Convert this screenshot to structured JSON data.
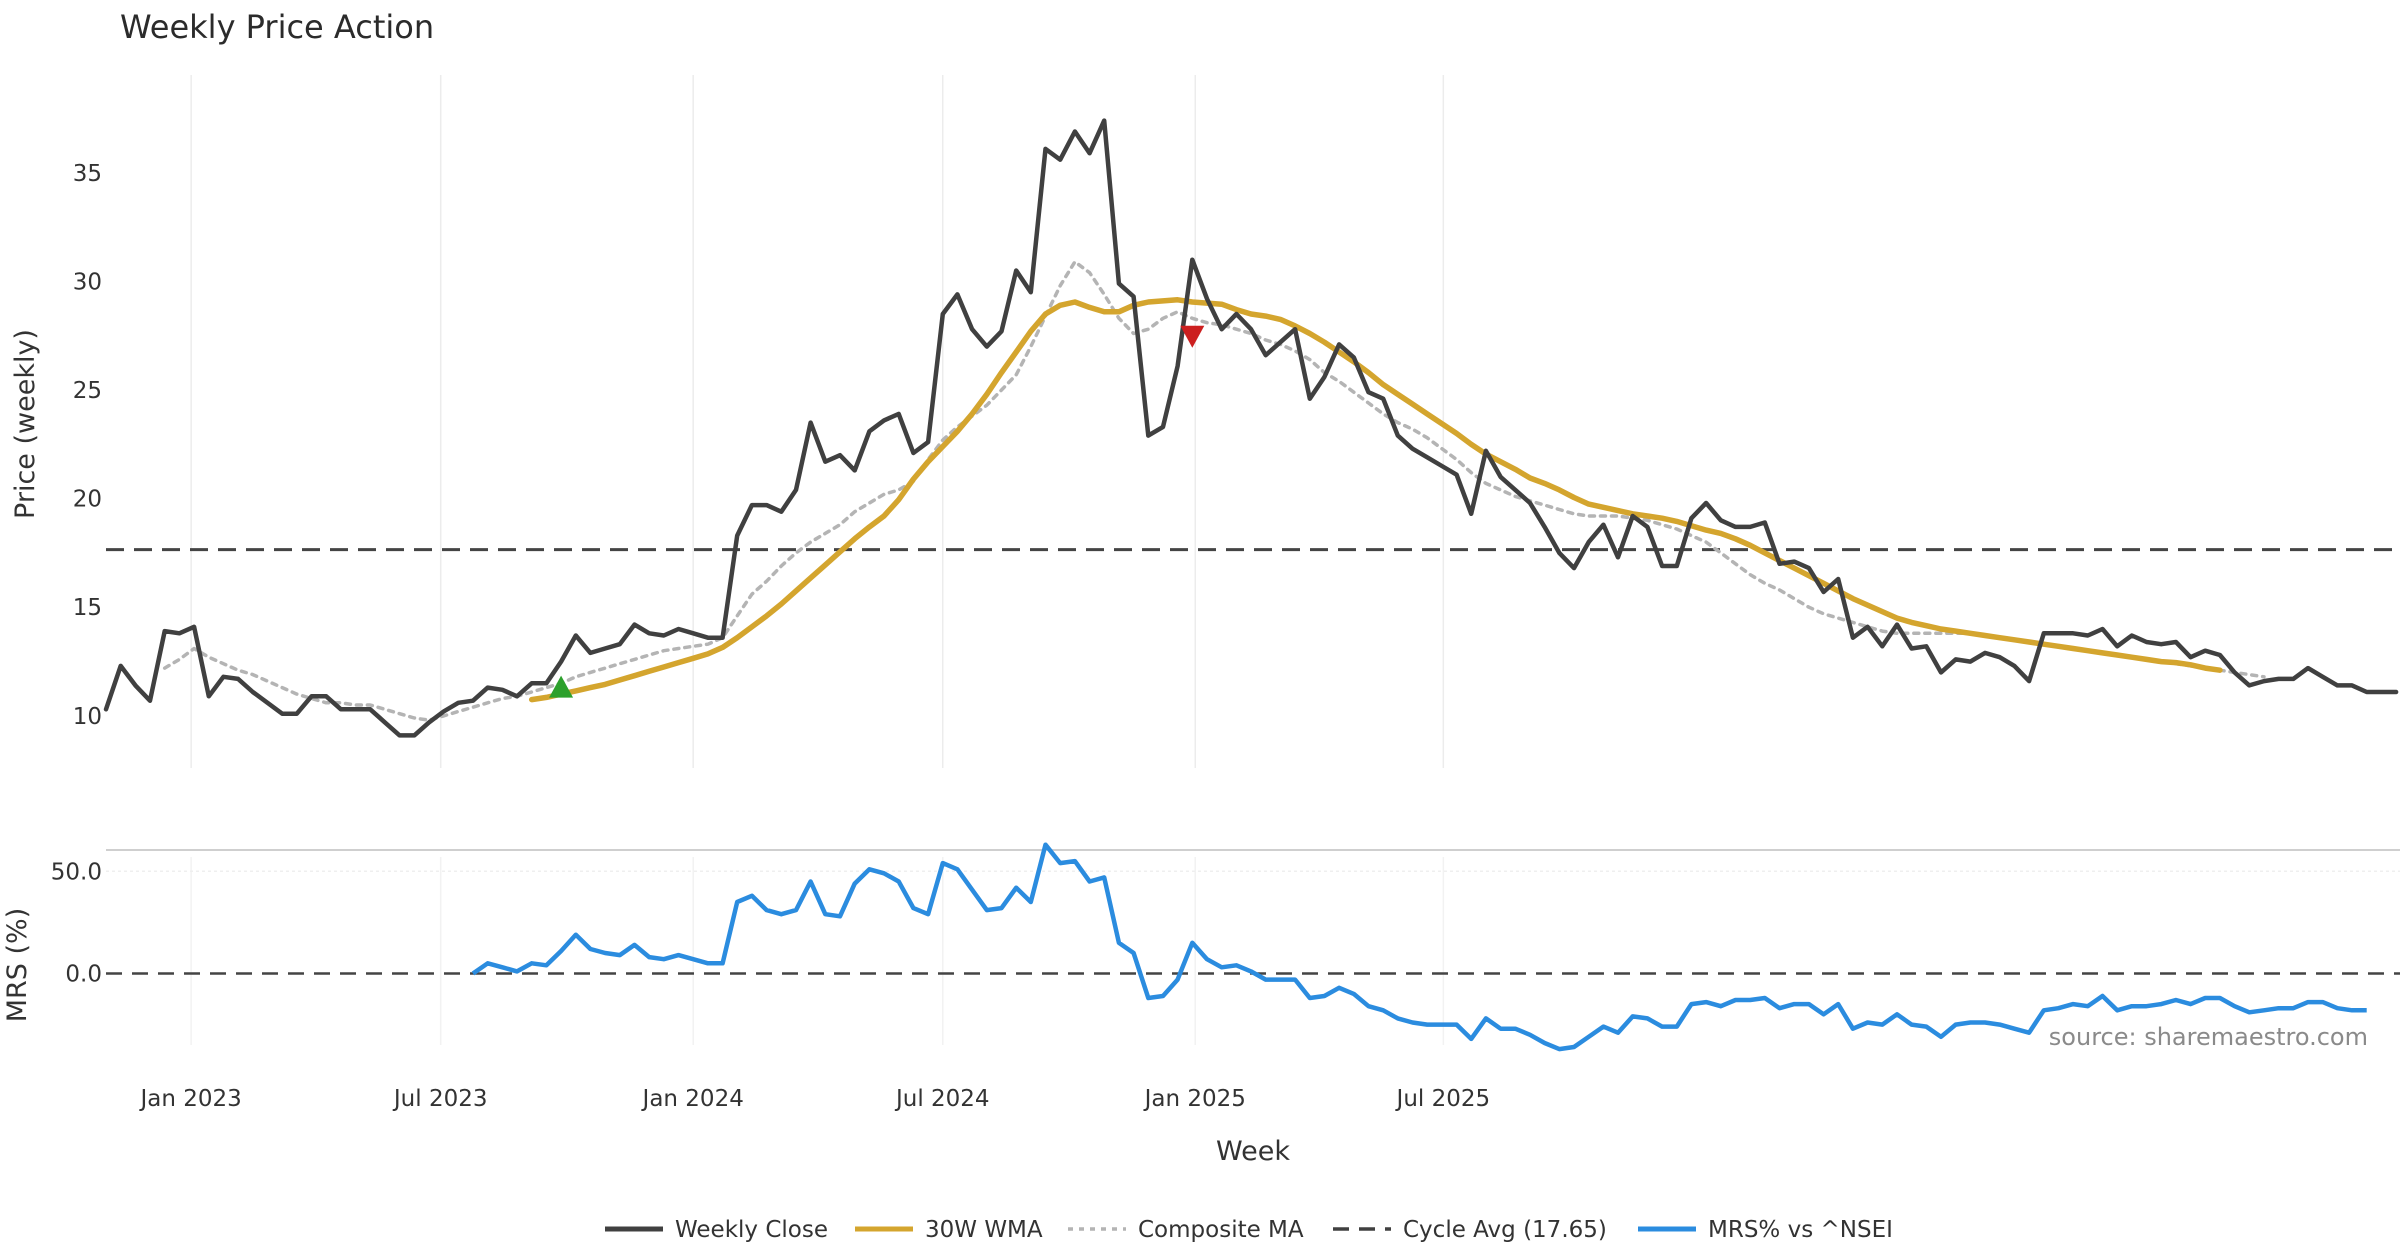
{
  "chart_data": {
    "type": "line",
    "title": "Weekly Price Action",
    "xlabel": "Week",
    "source": "source: sharemaestro.com",
    "x_ticks": [
      "Jan 2023",
      "Jul 2023",
      "Jan 2024",
      "Jul 2024",
      "Jan 2025",
      "Jul 2025"
    ],
    "price_panel": {
      "ylabel": "Price (weekly)",
      "ylim": [
        7.6,
        39.5
      ],
      "yticks": [
        "10",
        "15",
        "20",
        "25",
        "30",
        "35"
      ],
      "ytick_values": [
        10,
        15,
        20,
        25,
        30,
        35
      ],
      "series": [
        {
          "name": "Weekly Close",
          "color": "#404040",
          "style": "solid",
          "start_week": 0,
          "values": [
            10.3,
            12.3,
            11.4,
            10.7,
            13.9,
            13.8,
            14.1,
            10.9,
            11.8,
            11.7,
            11.1,
            10.6,
            10.1,
            10.1,
            10.9,
            10.9,
            10.3,
            10.3,
            10.3,
            9.7,
            9.1,
            9.1,
            9.7,
            10.2,
            10.6,
            10.7,
            11.3,
            11.2,
            10.9,
            11.5,
            11.5,
            12.5,
            13.7,
            12.9,
            13.1,
            13.3,
            14.2,
            13.8,
            13.7,
            14.0,
            13.8,
            13.6,
            13.6,
            18.3,
            19.7,
            19.7,
            19.4,
            20.4,
            23.5,
            21.7,
            22.0,
            21.3,
            23.1,
            23.6,
            23.9,
            22.1,
            22.6,
            28.5,
            29.4,
            27.8,
            27.0,
            27.7,
            30.5,
            29.5,
            36.1,
            35.6,
            36.9,
            35.9,
            37.4,
            29.9,
            29.3,
            22.9,
            23.3,
            26.1,
            31.0,
            29.2,
            27.8,
            28.5,
            27.8,
            26.6,
            27.2,
            27.8,
            24.6,
            25.6,
            27.1,
            26.5,
            24.9,
            24.6,
            22.9,
            22.3,
            21.9,
            21.5,
            21.1,
            19.3,
            22.2,
            21.0,
            20.4,
            19.8,
            18.7,
            17.5,
            16.8,
            18.0,
            18.8,
            17.3,
            19.2,
            18.7,
            16.9,
            16.9,
            19.1,
            19.8,
            19.0,
            18.7,
            18.7,
            18.9,
            17.0,
            17.1,
            16.8,
            15.7,
            16.3,
            13.6,
            14.1,
            13.2,
            14.2,
            13.1,
            13.2,
            12.0,
            12.6,
            12.5,
            12.9,
            12.7,
            12.3,
            11.6,
            13.8,
            13.8,
            13.8,
            13.7,
            14.0,
            13.2,
            13.7,
            13.4,
            13.3,
            13.4,
            12.7,
            13.0,
            12.8,
            12.0,
            11.4,
            11.6,
            11.7,
            11.7,
            12.2,
            11.8,
            11.4,
            11.4,
            11.1,
            11.1,
            11.1
          ]
        },
        {
          "name": "30W WMA",
          "color": "#d4a52e",
          "style": "solid",
          "start_week": 29,
          "values": [
            10.75,
            10.85,
            11.0,
            11.15,
            11.3,
            11.45,
            11.65,
            11.85,
            12.05,
            12.25,
            12.45,
            12.65,
            12.85,
            13.15,
            13.6,
            14.1,
            14.6,
            15.15,
            15.75,
            16.35,
            16.95,
            17.55,
            18.15,
            18.7,
            19.2,
            19.95,
            20.9,
            21.7,
            22.4,
            23.1,
            23.9,
            24.8,
            25.8,
            26.75,
            27.7,
            28.5,
            28.9,
            29.05,
            28.8,
            28.6,
            28.6,
            28.9,
            29.05,
            29.1,
            29.15,
            29.05,
            29.0,
            28.95,
            28.7,
            28.5,
            28.4,
            28.25,
            27.95,
            27.6,
            27.2,
            26.75,
            26.3,
            25.8,
            25.25,
            24.8,
            24.35,
            23.9,
            23.45,
            23.0,
            22.5,
            22.05,
            21.7,
            21.35,
            20.95,
            20.7,
            20.4,
            20.05,
            19.75,
            19.6,
            19.45,
            19.3,
            19.2,
            19.1,
            18.95,
            18.75,
            18.55,
            18.4,
            18.15,
            17.85,
            17.5,
            17.15,
            16.8,
            16.45,
            16.1,
            15.75,
            15.4,
            15.1,
            14.8,
            14.5,
            14.3,
            14.15,
            14.0,
            13.9,
            13.8,
            13.7,
            13.6,
            13.5,
            13.4,
            13.3,
            13.2,
            13.1,
            13.0,
            12.9,
            12.8,
            12.7,
            12.6,
            12.5,
            12.45,
            12.35,
            12.2,
            12.1
          ]
        },
        {
          "name": "Composite MA",
          "color": "#b4b4b4",
          "style": "dotted",
          "start_week": 4,
          "values": [
            12.2,
            12.6,
            13.1,
            12.7,
            12.4,
            12.1,
            11.9,
            11.6,
            11.3,
            11.0,
            10.8,
            10.6,
            10.6,
            10.5,
            10.5,
            10.3,
            10.1,
            9.9,
            9.8,
            10.0,
            10.2,
            10.4,
            10.6,
            10.8,
            10.9,
            11.1,
            11.3,
            11.5,
            11.8,
            12.0,
            12.2,
            12.4,
            12.6,
            12.8,
            13.0,
            13.1,
            13.2,
            13.3,
            13.6,
            14.6,
            15.6,
            16.2,
            16.9,
            17.5,
            18.0,
            18.4,
            18.8,
            19.4,
            19.8,
            20.2,
            20.4,
            20.8,
            21.8,
            22.7,
            23.3,
            23.8,
            24.3,
            25.0,
            25.7,
            27.0,
            28.4,
            29.8,
            30.9,
            30.4,
            29.4,
            28.3,
            27.6,
            27.8,
            28.3,
            28.6,
            28.3,
            28.1,
            28.0,
            27.8,
            27.6,
            27.3,
            27.1,
            26.8,
            26.4,
            25.8,
            25.4,
            24.9,
            24.4,
            23.9,
            23.5,
            23.2,
            22.8,
            22.3,
            21.8,
            21.2,
            20.7,
            20.4,
            20.1,
            19.9,
            19.7,
            19.5,
            19.3,
            19.2,
            19.2,
            19.2,
            19.1,
            19.0,
            18.8,
            18.6,
            18.3,
            18.0,
            17.5,
            17.0,
            16.5,
            16.1,
            15.8,
            15.4,
            15.0,
            14.7,
            14.5,
            14.3,
            14.1,
            13.9,
            13.8,
            13.8,
            13.8,
            13.8,
            13.8,
            13.8,
            13.7,
            13.6,
            13.5,
            13.4,
            13.3,
            13.2,
            13.1,
            13.0,
            12.9,
            12.8,
            12.7,
            12.6,
            12.5,
            12.4,
            12.3,
            12.2,
            12.1,
            12.0,
            11.9,
            11.8
          ]
        }
      ],
      "cycle_avg": 17.65,
      "markers": [
        {
          "type": "buy",
          "week": 31,
          "value": 11.3,
          "color": "#2ca02c"
        },
        {
          "type": "sell",
          "week": 74,
          "value": 27.5,
          "color": "#cc1f1f"
        }
      ]
    },
    "mrs_panel": {
      "ylabel": "MRS (%)",
      "ylim": [
        -35,
        57
      ],
      "yticks": [
        "0.0",
        "50.0"
      ],
      "ytick_values": [
        0,
        50
      ],
      "zero_line": 0,
      "series": {
        "name": "MRS% vs ^NSEI",
        "color": "#2b8cdf",
        "start_week": 25,
        "values": [
          0,
          5,
          3,
          1,
          5,
          4,
          11,
          19,
          12,
          10,
          9,
          14,
          8,
          7,
          9,
          7,
          5,
          5,
          35,
          38,
          31,
          29,
          31,
          45,
          29,
          28,
          44,
          51,
          49,
          45,
          32,
          29,
          54,
          51,
          41,
          31,
          32,
          42,
          35,
          63,
          54,
          55,
          45,
          47,
          15,
          10,
          -12,
          -11,
          -3,
          15,
          7,
          3,
          4,
          1,
          -3,
          -3,
          -3,
          -12,
          -11,
          -7,
          -10,
          -16,
          -18,
          -22,
          -24,
          -25,
          -25,
          -25,
          -32,
          -22,
          -27,
          -27,
          -30,
          -34,
          -37,
          -36,
          -31,
          -26,
          -29,
          -21,
          -22,
          -26,
          -26,
          -15,
          -14,
          -16,
          -13,
          -13,
          -12,
          -17,
          -15,
          -15,
          -20,
          -15,
          -27,
          -24,
          -25,
          -20,
          -25,
          -26,
          -31,
          -25,
          -24,
          -24,
          -25,
          -27,
          -29,
          -18,
          -17,
          -15,
          -16,
          -11,
          -18,
          -16,
          -16,
          -15,
          -13,
          -15,
          -12,
          -12,
          -16,
          -19,
          -18,
          -17,
          -17,
          -14,
          -14,
          -17,
          -18,
          -18
        ]
      }
    },
    "legend": [
      {
        "label": "Weekly Close",
        "color": "#404040",
        "style": "solid"
      },
      {
        "label": "30W WMA",
        "color": "#d4a52e",
        "style": "solid"
      },
      {
        "label": "Composite MA",
        "color": "#b4b4b4",
        "style": "dotted"
      },
      {
        "label": "Cycle Avg (17.65)",
        "color": "#404040",
        "style": "dashed"
      },
      {
        "label": "MRS% vs ^NSEI",
        "color": "#2b8cdf",
        "style": "solid"
      }
    ]
  }
}
